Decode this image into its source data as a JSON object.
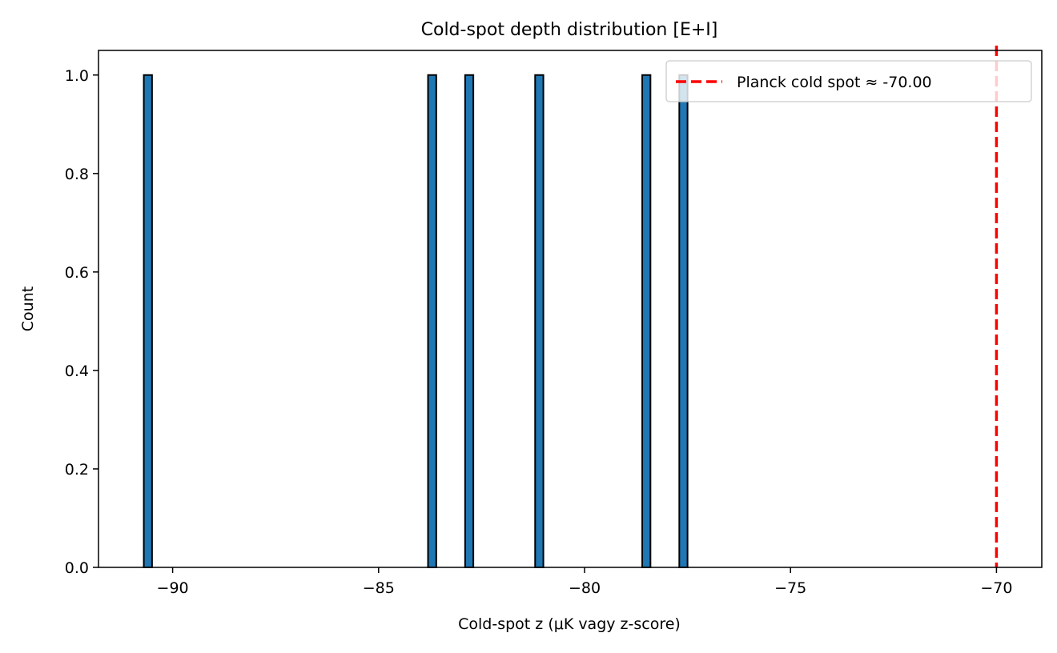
{
  "chart_data": {
    "type": "bar",
    "title": "Cold-spot depth distribution [E+I]",
    "xlabel": "Cold-spot z (μK vagy z-score)",
    "ylabel": "Count",
    "xlim": [
      -91.8,
      -68.9
    ],
    "ylim": [
      0,
      1.05
    ],
    "bin_width": 0.2,
    "bars": [
      {
        "center": -90.6,
        "value": 1
      },
      {
        "center": -83.7,
        "value": 1
      },
      {
        "center": -82.8,
        "value": 1
      },
      {
        "center": -81.1,
        "value": 1
      },
      {
        "center": -78.5,
        "value": 1
      },
      {
        "center": -77.6,
        "value": 1
      }
    ],
    "x_ticks": [
      {
        "value": -90,
        "label": "−90"
      },
      {
        "value": -85,
        "label": "−85"
      },
      {
        "value": -80,
        "label": "−80"
      },
      {
        "value": -75,
        "label": "−75"
      },
      {
        "value": -70,
        "label": "−70"
      }
    ],
    "y_ticks": [
      {
        "value": 0.0,
        "label": "0.0"
      },
      {
        "value": 0.2,
        "label": "0.2"
      },
      {
        "value": 0.4,
        "label": "0.4"
      },
      {
        "value": 0.6,
        "label": "0.6"
      },
      {
        "value": 0.8,
        "label": "0.8"
      },
      {
        "value": 1.0,
        "label": "1.0"
      }
    ],
    "reference_line": {
      "x": -70.0,
      "label": "Planck cold spot ≈ -70.00",
      "color": "#ff0000",
      "style": "dashed"
    },
    "bar_color": "#1f77b4",
    "bar_edge_color": "#000000",
    "legend_position": "upper-right",
    "grid": false
  }
}
